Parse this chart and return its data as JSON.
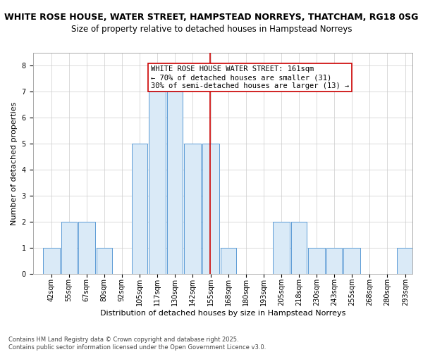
{
  "title": "WHITE ROSE HOUSE, WATER STREET, HAMPSTEAD NORREYS, THATCHAM, RG18 0SG",
  "subtitle": "Size of property relative to detached houses in Hampstead Norreys",
  "xlabel": "Distribution of detached houses by size in Hampstead Norreys",
  "ylabel": "Number of detached properties",
  "bar_edges": [
    42,
    55,
    67,
    80,
    92,
    105,
    117,
    130,
    142,
    155,
    168,
    180,
    193,
    205,
    218,
    230,
    243,
    255,
    268,
    280,
    293
  ],
  "bar_heights": [
    1,
    2,
    2,
    1,
    0,
    5,
    7,
    7,
    5,
    5,
    1,
    0,
    0,
    2,
    2,
    1,
    1,
    1,
    0,
    0,
    1
  ],
  "bar_color": "#daeaf7",
  "bar_edge_color": "#5b9bd5",
  "vline_x": 161,
  "vline_color": "#cc0000",
  "annotation_text": "WHITE ROSE HOUSE WATER STREET: 161sqm\n← 70% of detached houses are smaller (31)\n30% of semi-detached houses are larger (13) →",
  "annotation_box_color": "#ffffff",
  "annotation_box_edge_color": "#cc0000",
  "ylim": [
    0,
    8.5
  ],
  "yticks": [
    0,
    1,
    2,
    3,
    4,
    5,
    6,
    7,
    8
  ],
  "footer": "Contains HM Land Registry data © Crown copyright and database right 2025.\nContains public sector information licensed under the Open Government Licence v3.0.",
  "title_fontsize": 9,
  "subtitle_fontsize": 8.5,
  "xlabel_fontsize": 8,
  "ylabel_fontsize": 8,
  "tick_fontsize": 7,
  "annotation_fontsize": 7.5,
  "footer_fontsize": 6
}
